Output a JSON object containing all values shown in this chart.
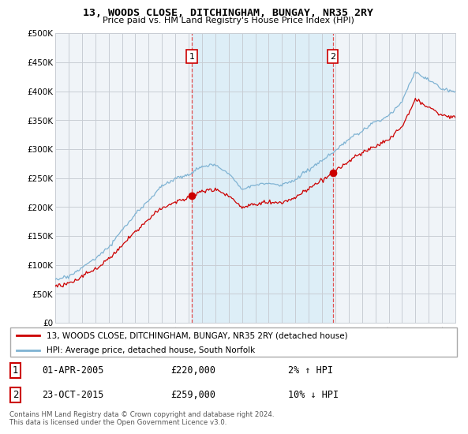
{
  "title": "13, WOODS CLOSE, DITCHINGHAM, BUNGAY, NR35 2RY",
  "subtitle": "Price paid vs. HM Land Registry's House Price Index (HPI)",
  "legend_line1": "13, WOODS CLOSE, DITCHINGHAM, BUNGAY, NR35 2RY (detached house)",
  "legend_line2": "HPI: Average price, detached house, South Norfolk",
  "annotation1_label": "1",
  "annotation1_date": "01-APR-2005",
  "annotation1_price": "£220,000",
  "annotation1_hpi": "2% ↑ HPI",
  "annotation2_label": "2",
  "annotation2_date": "23-OCT-2015",
  "annotation2_price": "£259,000",
  "annotation2_hpi": "10% ↓ HPI",
  "footer": "Contains HM Land Registry data © Crown copyright and database right 2024.\nThis data is licensed under the Open Government Licence v3.0.",
  "sale1_x": 2005.25,
  "sale1_y": 220000,
  "sale2_x": 2015.8,
  "sale2_y": 259000,
  "hpi_color": "#7fb3d3",
  "price_color": "#cc0000",
  "shade_color": "#ddeef7",
  "plot_bg_color": "#f0f4f8",
  "grid_color": "#c8cdd4",
  "ylim": [
    0,
    500000
  ],
  "xlim": [
    1995,
    2025
  ],
  "yticks": [
    0,
    50000,
    100000,
    150000,
    200000,
    250000,
    300000,
    350000,
    400000,
    450000,
    500000
  ],
  "xticks": [
    1995,
    1996,
    1997,
    1998,
    1999,
    2000,
    2001,
    2002,
    2003,
    2004,
    2005,
    2006,
    2007,
    2008,
    2009,
    2010,
    2011,
    2012,
    2013,
    2014,
    2015,
    2016,
    2017,
    2018,
    2019,
    2020,
    2021,
    2022,
    2023,
    2024,
    2025
  ]
}
